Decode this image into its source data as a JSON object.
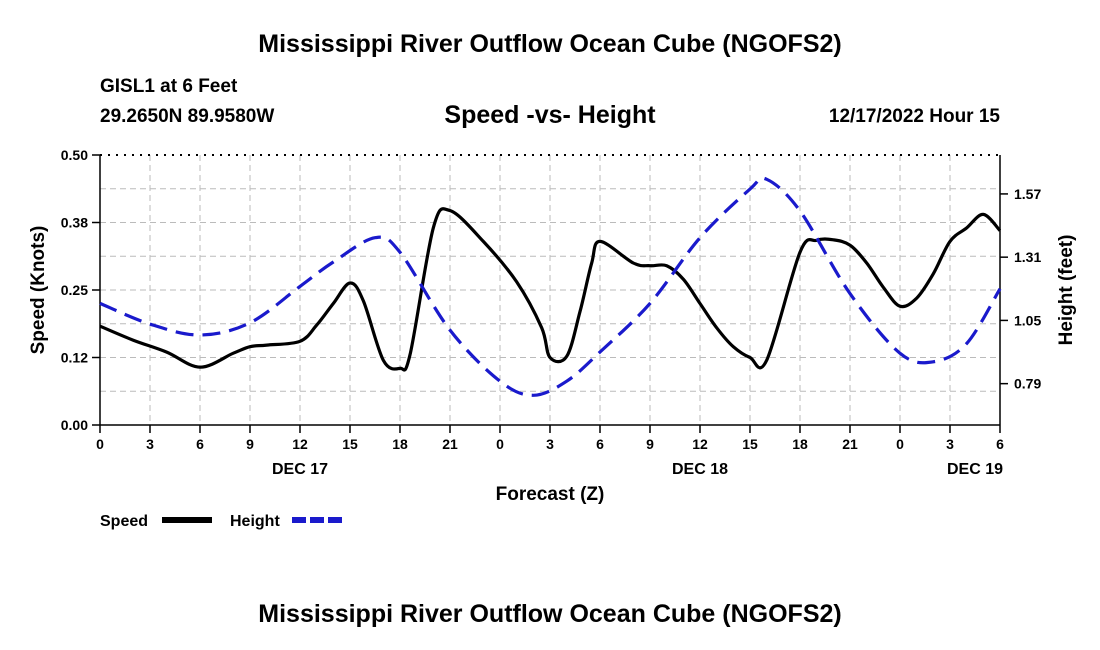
{
  "header": {
    "main_title": "Mississippi River Outflow Ocean Cube (NGOFS2)",
    "station": "GISL1 at 6 Feet",
    "coords": "29.2650N  89.9580W",
    "chart_title": "Speed -vs- Height",
    "datetime": "12/17/2022 Hour 15",
    "bottom_title": "Mississippi River Outflow Ocean Cube (NGOFS2)"
  },
  "colors": {
    "speed": "#000000",
    "height": "#1a1acc",
    "grid": "#bbbbbb"
  },
  "chart_data": {
    "type": "line",
    "title": "Speed -vs- Height",
    "xlabel": "Forecast (Z)",
    "ylabel": "Speed (Knots)",
    "y2label": "Height (feet)",
    "xlim": [
      0,
      54
    ],
    "ylim": [
      0,
      0.5
    ],
    "y2lim": [
      0.62,
      1.73
    ],
    "x_ticks": [
      0,
      3,
      6,
      9,
      12,
      15,
      18,
      21,
      24,
      27,
      30,
      33,
      36,
      39,
      42,
      45,
      48,
      51,
      54
    ],
    "x_tick_labels": [
      "0",
      "3",
      "6",
      "9",
      "12",
      "15",
      "18",
      "21",
      "0",
      "3",
      "6",
      "9",
      "12",
      "15",
      "18",
      "21",
      "0",
      "3",
      "6"
    ],
    "y_ticks": [
      0,
      0.125,
      0.25,
      0.375,
      0.5
    ],
    "y_tick_labels": [
      "0.00",
      "0.12",
      "0.25",
      "0.38",
      "0.50"
    ],
    "y2_ticks": [
      0.79,
      1.05,
      1.31,
      1.57
    ],
    "y2_tick_labels": [
      "0.79",
      "1.05",
      "1.31",
      "1.57"
    ],
    "date_labels": [
      {
        "x": 12,
        "label": "DEC 17"
      },
      {
        "x": 36,
        "label": "DEC 18"
      },
      {
        "x": 52.5,
        "label": "DEC 19"
      }
    ],
    "series": [
      {
        "name": "Speed",
        "axis": "left",
        "style": "solid",
        "x": [
          0,
          2,
          4,
          6,
          8,
          9,
          10,
          12,
          13,
          14,
          15,
          15.8,
          17,
          18,
          18.6,
          20,
          21,
          23,
          25,
          26.5,
          27,
          28,
          28.8,
          29.5,
          30,
          32,
          33,
          34,
          35,
          36,
          37,
          38,
          39,
          40,
          42,
          43,
          44,
          45,
          46,
          47,
          48,
          49,
          50,
          51,
          52,
          53,
          54
        ],
        "y": [
          0.183,
          0.157,
          0.135,
          0.107,
          0.133,
          0.145,
          0.148,
          0.155,
          0.185,
          0.225,
          0.263,
          0.23,
          0.12,
          0.105,
          0.13,
          0.365,
          0.397,
          0.34,
          0.265,
          0.18,
          0.125,
          0.127,
          0.21,
          0.3,
          0.34,
          0.3,
          0.295,
          0.295,
          0.27,
          0.225,
          0.18,
          0.145,
          0.125,
          0.12,
          0.32,
          0.342,
          0.343,
          0.333,
          0.3,
          0.255,
          0.22,
          0.235,
          0.28,
          0.34,
          0.365,
          0.39,
          0.36
        ]
      },
      {
        "name": "Height",
        "axis": "right",
        "style": "dashed",
        "x": [
          0,
          3,
          6,
          9,
          12,
          14,
          16.5,
          18,
          21,
          24,
          26,
          28,
          30,
          33,
          36,
          39,
          40,
          42,
          45,
          48,
          50,
          52,
          54
        ],
        "y": [
          1.12,
          1.035,
          0.99,
          1.04,
          1.19,
          1.29,
          1.39,
          1.33,
          1.01,
          0.8,
          0.742,
          0.8,
          0.92,
          1.12,
          1.39,
          1.59,
          1.63,
          1.5,
          1.16,
          0.915,
          0.88,
          0.955,
          1.18
        ]
      }
    ],
    "legend": {
      "position": "bottom-left",
      "entries": [
        "Speed",
        "Height"
      ]
    }
  }
}
